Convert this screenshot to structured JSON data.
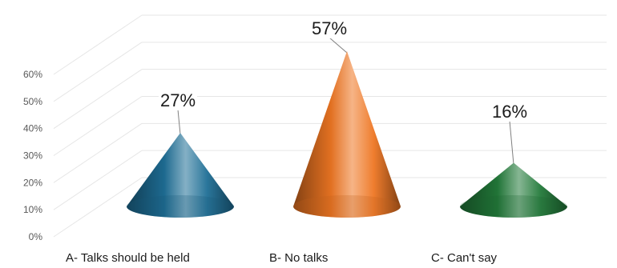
{
  "chart_data": {
    "type": "bar",
    "style": "3d-cone",
    "categories": [
      "A- Talks should be held",
      "B- No talks",
      "C- Can't say"
    ],
    "values": [
      27,
      57,
      16
    ],
    "data_labels": [
      "27%",
      "57%",
      "16%"
    ],
    "y_ticks": [
      "0%",
      "10%",
      "20%",
      "30%",
      "40%",
      "50%",
      "60%"
    ],
    "ylim": [
      0,
      60
    ],
    "grid": true,
    "legend": "none",
    "colors": [
      "#1f6f96",
      "#ee7623",
      "#237a3a"
    ]
  }
}
